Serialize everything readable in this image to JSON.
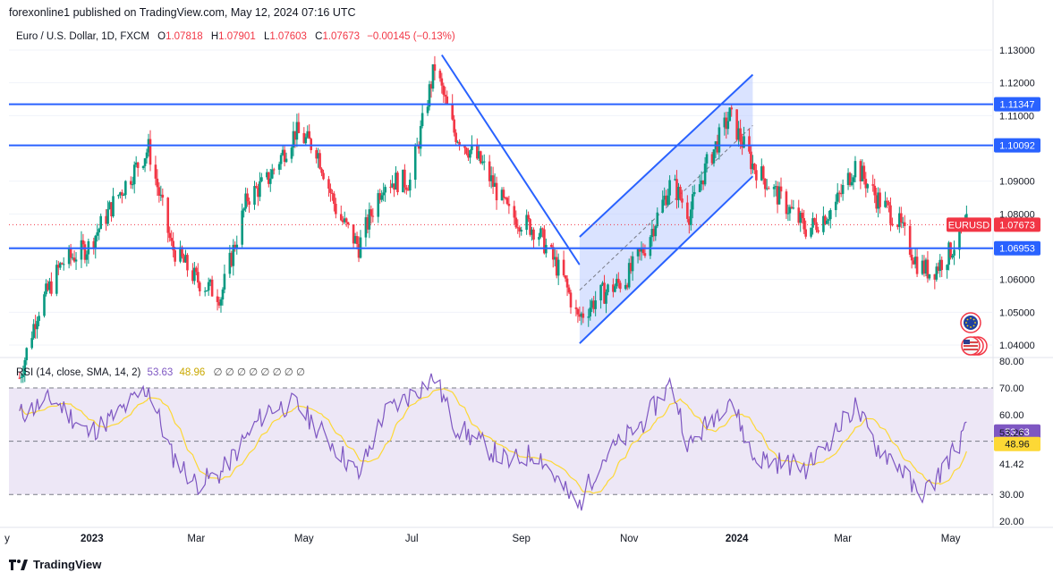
{
  "header": {
    "text": "forexonline1 published on TradingView.com, May 12, 2024 07:16 UTC"
  },
  "legend": {
    "symbol": "Euro / U.S. Dollar, 1D, FXCM",
    "o_label": "O",
    "o": "1.07818",
    "h_label": "H",
    "h": "1.07901",
    "l_label": "L",
    "l": "1.07603",
    "c_label": "C",
    "c": "1.07673",
    "change": "−0.00145 (−0.13%)"
  },
  "rsi_legend": {
    "label": "RSI (14, close, SMA, 14, 2)",
    "rsi": "53.63",
    "sma": "48.96",
    "na": "∅ ∅ ∅ ∅ ∅ ∅ ∅ ∅"
  },
  "price_axis": [
    "1.13000",
    "1.12000",
    "1.11000",
    "1.10000",
    "1.09000",
    "1.08000",
    "1.07000",
    "1.06000",
    "1.05000",
    "1.04000"
  ],
  "price_axis_values": [
    1.13,
    1.12,
    1.11,
    1.1,
    1.09,
    1.08,
    1.07,
    1.06,
    1.05,
    1.04
  ],
  "price_tags": [
    {
      "text": "1.11347",
      "value": 1.11347,
      "kind": "level"
    },
    {
      "text": "1.10092",
      "value": 1.10092,
      "kind": "level"
    },
    {
      "text": "EURUSD",
      "value": 1.07673,
      "kind": "symbol"
    },
    {
      "text": "1.07673",
      "value": 1.07673,
      "kind": "last"
    },
    {
      "text": "1.06953",
      "value": 1.06953,
      "kind": "level"
    }
  ],
  "rsi_axis": [
    "80.00",
    "70.00",
    "60.00",
    "53.63",
    "53.26",
    "48.96",
    "41.42",
    "30.00",
    "20.00"
  ],
  "rsi_axis_values": [
    80,
    70,
    60,
    53.63,
    53.26,
    48.96,
    41.42,
    30,
    20
  ],
  "time_axis": [
    "y",
    "2023",
    "Mar",
    "May",
    "Jul",
    "Sep",
    "Nov",
    "2024",
    "Mar",
    "May"
  ],
  "time_axis_bold": [
    false,
    true,
    false,
    false,
    false,
    false,
    false,
    true,
    false,
    false
  ],
  "footer": {
    "brand": "TradingView"
  },
  "colors": {
    "up": "#089981",
    "down": "#f23645",
    "line": "#2962ff",
    "rsi": "#7e57c2",
    "sma": "#fdd835",
    "band": "#ede7f6",
    "channel": "#bbccff"
  },
  "chart_data": {
    "type": "candlestick",
    "symbol": "EURUSD",
    "timeframe": "1D",
    "price_range": [
      1.0345,
      1.1355
    ],
    "horizontal_levels": [
      1.11347,
      1.10092,
      1.06953
    ],
    "last_price": 1.07673,
    "trend_line_down": {
      "from": {
        "date": "2023-07-18",
        "price": 1.1285
      },
      "to": {
        "date": "2023-10-04",
        "price": 1.0645
      }
    },
    "channel": {
      "lower": {
        "from": {
          "date": "2023-10-04",
          "price": 1.0405
        },
        "to": {
          "date": "2024-01-10",
          "price": 1.0915
        }
      },
      "upper": {
        "from": {
          "date": "2023-10-04",
          "price": 1.073
        },
        "to": {
          "date": "2024-01-10",
          "price": 1.1225
        }
      }
    },
    "price_path": [
      [
        "2022-11-21",
        1.03
      ],
      [
        "2022-12-01",
        1.05
      ],
      [
        "2022-12-15",
        1.065
      ],
      [
        "2022-12-30",
        1.07
      ],
      [
        "2023-01-15",
        1.085
      ],
      [
        "2023-02-02",
        1.1
      ],
      [
        "2023-02-15",
        1.07
      ],
      [
        "2023-03-01",
        1.06
      ],
      [
        "2023-03-15",
        1.055
      ],
      [
        "2023-03-30",
        1.085
      ],
      [
        "2023-04-10",
        1.09
      ],
      [
        "2023-04-26",
        1.105
      ],
      [
        "2023-05-08",
        1.1
      ],
      [
        "2023-05-20",
        1.08
      ],
      [
        "2023-06-01",
        1.07
      ],
      [
        "2023-06-15",
        1.09
      ],
      [
        "2023-06-30",
        1.09
      ],
      [
        "2023-07-14",
        1.125
      ],
      [
        "2023-07-25",
        1.105
      ],
      [
        "2023-08-10",
        1.095
      ],
      [
        "2023-08-25",
        1.08
      ],
      [
        "2023-09-10",
        1.075
      ],
      [
        "2023-09-25",
        1.06
      ],
      [
        "2023-10-03",
        1.048
      ],
      [
        "2023-10-15",
        1.055
      ],
      [
        "2023-10-30",
        1.06
      ],
      [
        "2023-11-10",
        1.07
      ],
      [
        "2023-11-25",
        1.09
      ],
      [
        "2023-12-05",
        1.08
      ],
      [
        "2023-12-15",
        1.095
      ],
      [
        "2023-12-28",
        1.11
      ],
      [
        "2024-01-10",
        1.095
      ],
      [
        "2024-01-25",
        1.085
      ],
      [
        "2024-02-10",
        1.075
      ],
      [
        "2024-02-25",
        1.082
      ],
      [
        "2024-03-08",
        1.095
      ],
      [
        "2024-03-20",
        1.085
      ],
      [
        "2024-04-01",
        1.078
      ],
      [
        "2024-04-12",
        1.065
      ],
      [
        "2024-04-20",
        1.062
      ],
      [
        "2024-04-30",
        1.068
      ],
      [
        "2024-05-10",
        1.0767
      ]
    ],
    "rsi_path": [
      [
        "2022-11-21",
        60
      ],
      [
        "2022-12-10",
        66
      ],
      [
        "2022-12-30",
        53
      ],
      [
        "2023-01-15",
        60
      ],
      [
        "2023-02-02",
        70
      ],
      [
        "2023-02-15",
        45
      ],
      [
        "2023-03-01",
        34
      ],
      [
        "2023-03-15",
        38
      ],
      [
        "2023-04-10",
        62
      ],
      [
        "2023-04-26",
        64
      ],
      [
        "2023-05-20",
        47
      ],
      [
        "2023-06-01",
        37
      ],
      [
        "2023-06-15",
        60
      ],
      [
        "2023-07-14",
        74
      ],
      [
        "2023-07-25",
        56
      ],
      [
        "2023-08-25",
        42
      ],
      [
        "2023-09-10",
        46
      ],
      [
        "2023-09-25",
        32
      ],
      [
        "2023-10-03",
        25
      ],
      [
        "2023-10-15",
        42
      ],
      [
        "2023-11-10",
        58
      ],
      [
        "2023-11-25",
        72
      ],
      [
        "2023-12-05",
        48
      ],
      [
        "2023-12-28",
        67
      ],
      [
        "2024-01-10",
        44
      ],
      [
        "2024-02-10",
        40
      ],
      [
        "2024-03-08",
        63
      ],
      [
        "2024-03-20",
        48
      ],
      [
        "2024-04-01",
        42
      ],
      [
        "2024-04-12",
        30
      ],
      [
        "2024-04-20",
        33
      ],
      [
        "2024-05-10",
        54
      ]
    ],
    "rsi_levels": [
      70,
      50,
      30
    ],
    "rsi_range": [
      18,
      80
    ],
    "time_range": [
      "2022-11-15",
      "2024-05-25"
    ]
  }
}
